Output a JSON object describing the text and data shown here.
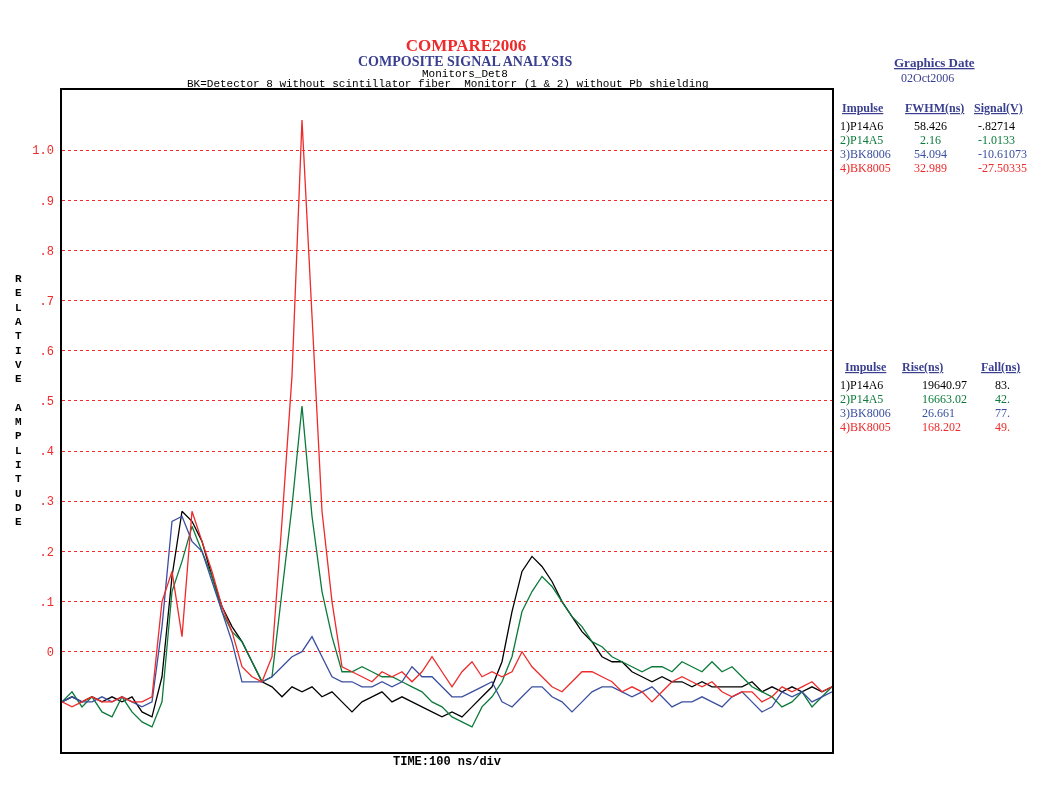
{
  "chart_data": {
    "type": "line",
    "title": "COMPARE2006",
    "subtitle": "COMPOSITE SIGNAL ANALYSIS",
    "xlabel": "TIME:100 ns/div",
    "ylabel": "RELATIVE AMPLITUDE",
    "annotations": [
      "Monitors_Det8",
      "BK=Detector 8 without scintillator fiber  Monitorr (1 & 2) without Pb shielding",
      "Graphics Date",
      "02Oct2006",
      "Impulse",
      "FWHM(ns)",
      "Signal(V)",
      "58.426",
      "-.82714",
      "2.16",
      "-1.0133",
      "54.094",
      "-10.61073",
      "32.989",
      "-27.50335",
      "Impulse",
      "Rise(ns)",
      "Fall(ns)",
      "19640.97",
      "83.",
      "16663.02",
      "42.",
      "26.661",
      "77.",
      "168.202",
      "49."
    ],
    "categories": [
      null,
      null,
      null,
      null,
      null,
      null,
      null,
      null,
      null,
      null,
      null,
      null,
      null,
      null,
      null,
      null,
      null,
      null,
      null,
      null,
      null,
      null,
      null,
      null,
      null,
      null,
      null,
      null,
      null,
      null,
      null,
      null,
      null,
      null,
      null,
      null,
      null,
      null,
      null,
      null,
      null,
      null,
      null,
      null,
      null,
      null,
      null,
      null,
      null,
      null,
      null,
      null,
      null,
      null,
      null,
      null,
      null,
      null,
      null,
      null,
      null,
      null,
      null,
      null,
      null,
      null,
      null,
      null,
      null,
      null,
      null,
      null,
      null,
      null,
      null,
      null,
      null,
      null
    ],
    "ylim": [
      -0.2,
      1.12
    ],
    "yticks": [
      0,
      {
        "value": 0.1,
        "label": ".1"
      },
      {
        "value": 0.2,
        "label": ".2"
      },
      {
        "value": 0.3,
        "label": ".3"
      },
      {
        "value": 0.4,
        "label": ".4"
      },
      {
        "value": 0.5,
        "label": ".5"
      },
      {
        "value": 0.6,
        "label": ".6"
      },
      {
        "value": 0.7,
        "label": ".7"
      },
      {
        "value": 0.8,
        "label": ".8"
      },
      {
        "value": 0.9,
        "label": ".9"
      },
      {
        "value": 1.0,
        "label": "1.0"
      }
    ],
    "grid": "y",
    "legend": false,
    "tick_labels": "y",
    "marker": "none",
    "line_style": "solid",
    "series": [
      {
        "name": "1)P14A6",
        "color": "#000000",
        "values": [
          -0.1,
          -0.09,
          -0.1,
          -0.09,
          -0.1,
          -0.09,
          -0.1,
          -0.09,
          -0.12,
          -0.13,
          -0.05,
          0.15,
          0.28,
          0.26,
          0.22,
          0.15,
          0.09,
          0.05,
          0.02,
          -0.02,
          -0.06,
          -0.07,
          -0.09,
          -0.07,
          -0.08,
          -0.07,
          -0.09,
          -0.08,
          -0.1,
          -0.12,
          -0.1,
          -0.09,
          -0.08,
          -0.1,
          -0.09,
          -0.1,
          -0.11,
          -0.12,
          -0.13,
          -0.12,
          -0.13,
          -0.11,
          -0.09,
          -0.07,
          -0.02,
          0.08,
          0.16,
          0.19,
          0.17,
          0.14,
          0.1,
          0.07,
          0.04,
          0.02,
          -0.01,
          -0.02,
          -0.02,
          -0.04,
          -0.05,
          -0.06,
          -0.05,
          -0.06,
          -0.06,
          -0.07,
          -0.06,
          -0.07,
          -0.07,
          -0.07,
          -0.07,
          -0.06,
          -0.08,
          -0.07,
          -0.08,
          -0.07,
          -0.08,
          -0.07,
          -0.08,
          -0.07
        ]
      },
      {
        "name": "2)P14A5",
        "color": "#0b7a3a",
        "values": [
          -0.1,
          -0.08,
          -0.11,
          -0.09,
          -0.12,
          -0.13,
          -0.09,
          -0.12,
          -0.14,
          -0.15,
          -0.1,
          0.12,
          0.18,
          0.25,
          0.2,
          0.15,
          0.08,
          0.04,
          0.02,
          -0.02,
          -0.06,
          -0.05,
          0.12,
          0.29,
          0.49,
          0.27,
          0.12,
          0.03,
          -0.04,
          -0.04,
          -0.03,
          -0.04,
          -0.05,
          -0.05,
          -0.06,
          -0.07,
          -0.08,
          -0.1,
          -0.11,
          -0.13,
          -0.14,
          -0.15,
          -0.11,
          -0.09,
          -0.06,
          -0.01,
          0.08,
          0.12,
          0.15,
          0.13,
          0.1,
          0.07,
          0.05,
          0.02,
          0.01,
          -0.01,
          -0.02,
          -0.03,
          -0.04,
          -0.03,
          -0.03,
          -0.04,
          -0.02,
          -0.03,
          -0.04,
          -0.02,
          -0.04,
          -0.03,
          -0.05,
          -0.07,
          -0.08,
          -0.09,
          -0.11,
          -0.1,
          -0.08,
          -0.11,
          -0.09,
          -0.07
        ]
      },
      {
        "name": "3)BK8006",
        "color": "#3a4fa0",
        "values": [
          -0.1,
          -0.09,
          -0.1,
          -0.1,
          -0.09,
          -0.1,
          -0.09,
          -0.1,
          -0.11,
          -0.1,
          0.05,
          0.26,
          0.27,
          0.22,
          0.2,
          0.14,
          0.08,
          0.02,
          -0.06,
          -0.06,
          -0.06,
          -0.05,
          -0.03,
          -0.01,
          0.0,
          0.03,
          -0.01,
          -0.05,
          -0.06,
          -0.06,
          -0.07,
          -0.07,
          -0.06,
          -0.07,
          -0.06,
          -0.03,
          -0.05,
          -0.05,
          -0.07,
          -0.09,
          -0.09,
          -0.08,
          -0.07,
          -0.06,
          -0.1,
          -0.11,
          -0.09,
          -0.07,
          -0.07,
          -0.09,
          -0.1,
          -0.12,
          -0.1,
          -0.08,
          -0.07,
          -0.07,
          -0.08,
          -0.09,
          -0.08,
          -0.07,
          -0.09,
          -0.11,
          -0.1,
          -0.1,
          -0.09,
          -0.1,
          -0.11,
          -0.09,
          -0.08,
          -0.1,
          -0.12,
          -0.11,
          -0.08,
          -0.09,
          -0.08,
          -0.1,
          -0.09,
          -0.08
        ]
      },
      {
        "name": "4)BK8005",
        "color": "#ee2a2a",
        "values": [
          -0.1,
          -0.11,
          -0.1,
          -0.09,
          -0.1,
          -0.1,
          -0.09,
          -0.1,
          -0.1,
          -0.09,
          0.1,
          0.16,
          0.03,
          0.28,
          0.22,
          0.16,
          0.09,
          0.04,
          -0.03,
          -0.05,
          -0.06,
          -0.01,
          0.26,
          0.55,
          1.06,
          0.67,
          0.28,
          0.1,
          -0.03,
          -0.04,
          -0.05,
          -0.06,
          -0.04,
          -0.05,
          -0.04,
          -0.06,
          -0.04,
          -0.01,
          -0.04,
          -0.07,
          -0.04,
          -0.02,
          -0.05,
          -0.04,
          -0.05,
          -0.04,
          0.0,
          -0.03,
          -0.05,
          -0.07,
          -0.08,
          -0.06,
          -0.04,
          -0.04,
          -0.05,
          -0.06,
          -0.08,
          -0.07,
          -0.08,
          -0.1,
          -0.08,
          -0.06,
          -0.05,
          -0.06,
          -0.07,
          -0.06,
          -0.08,
          -0.09,
          -0.08,
          -0.08,
          -0.1,
          -0.09,
          -0.07,
          -0.08,
          -0.07,
          -0.06,
          -0.08,
          -0.07
        ]
      }
    ]
  }
}
